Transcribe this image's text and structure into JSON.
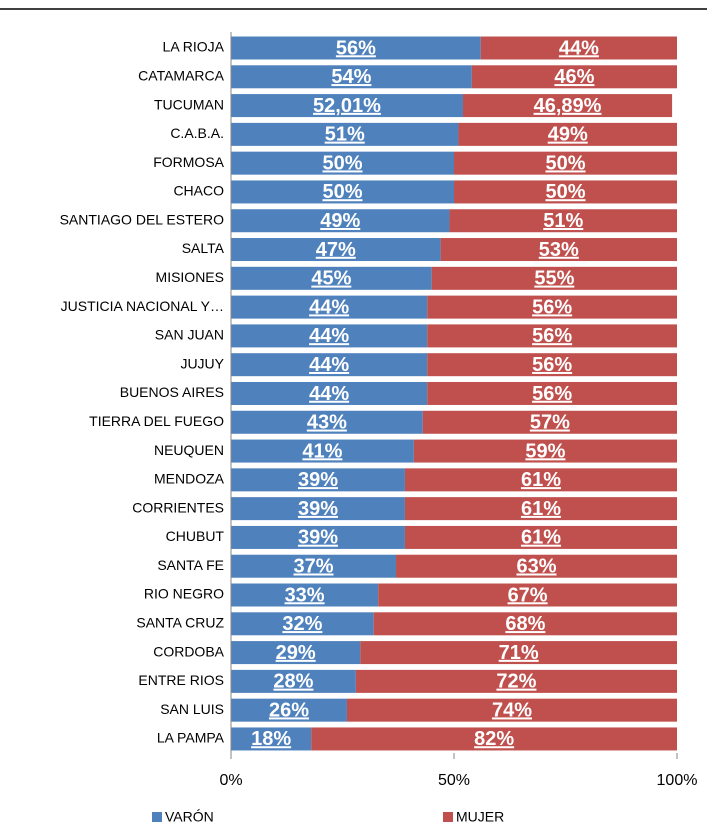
{
  "chart_data": {
    "type": "stacked_barh",
    "categories": [
      "LA RIOJA",
      "CATAMARCA",
      "TUCUMAN",
      "C.A.B.A.",
      "FORMOSA",
      "CHACO",
      "SANTIAGO DEL ESTERO",
      "SALTA",
      "MISIONES",
      "JUSTICIA NACIONAL Y…",
      "SAN JUAN",
      "JUJUY",
      "BUENOS AIRES",
      "TIERRA DEL FUEGO",
      "NEUQUEN",
      "MENDOZA",
      "CORRIENTES",
      "CHUBUT",
      "SANTA FE",
      "RIO NEGRO",
      "SANTA CRUZ",
      "CORDOBA",
      "ENTRE RIOS",
      "SAN LUIS",
      "LA PAMPA"
    ],
    "series": [
      {
        "name": "VARÓN",
        "color": "#4f81bd",
        "values": [
          56,
          54,
          52.01,
          51,
          50,
          50,
          49,
          47,
          45,
          44,
          44,
          44,
          44,
          43,
          41,
          39,
          39,
          39,
          37,
          33,
          32,
          29,
          28,
          26,
          18
        ],
        "value_labels": [
          "56%",
          "54%",
          "52,01%",
          "51%",
          "50%",
          "50%",
          "49%",
          "47%",
          "45%",
          "44%",
          "44%",
          "44%",
          "44%",
          "43%",
          "41%",
          "39%",
          "39%",
          "39%",
          "37%",
          "33%",
          "32%",
          "29%",
          "28%",
          "26%",
          "18%"
        ]
      },
      {
        "name": "MUJER",
        "color": "#c0504d",
        "values": [
          44,
          46,
          46.89,
          49,
          50,
          50,
          51,
          53,
          55,
          56,
          56,
          56,
          56,
          57,
          59,
          61,
          61,
          61,
          63,
          67,
          68,
          71,
          72,
          74,
          82
        ],
        "value_labels": [
          "44%",
          "46%",
          "46,89%",
          "49%",
          "50%",
          "50%",
          "51%",
          "53%",
          "55%",
          "56%",
          "56%",
          "56%",
          "56%",
          "57%",
          "59%",
          "61%",
          "61%",
          "61%",
          "63%",
          "67%",
          "68%",
          "71%",
          "72%",
          "74%",
          "82%"
        ]
      }
    ],
    "xlim": [
      0,
      100
    ],
    "xticks": [
      {
        "value": 0,
        "label": "0%"
      },
      {
        "value": 50,
        "label": "50%"
      },
      {
        "value": 100,
        "label": "100%"
      }
    ]
  }
}
